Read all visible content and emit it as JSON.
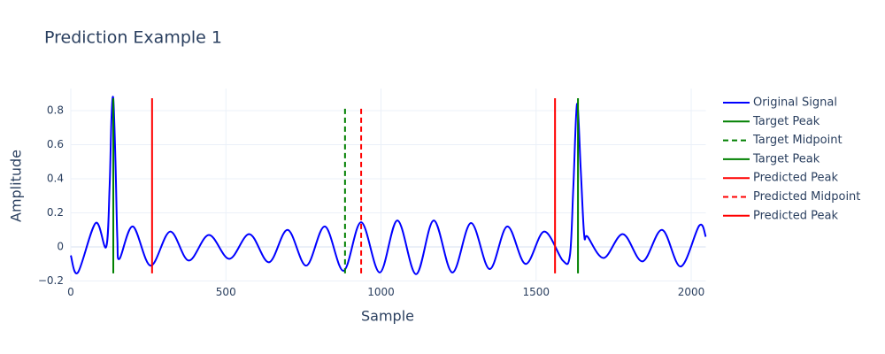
{
  "chart_data": {
    "type": "line",
    "title": "Prediction Example 1",
    "x_label": "Sample",
    "y_label": "Amplitude",
    "xlim": [
      0,
      2047
    ],
    "ylim": [
      -0.2,
      0.93
    ],
    "xticks": [
      0,
      500,
      1000,
      1500,
      2000
    ],
    "yticks": [
      {
        "value": -0.2,
        "label": "−0.2"
      },
      0,
      0.2,
      0.4,
      0.6,
      0.8
    ],
    "grid": true,
    "legend": "right",
    "series": [
      {
        "name": "Original Signal",
        "color": "#0000ff",
        "dash": "solid",
        "smooth": true,
        "x": [
          0,
          23,
          80,
          114,
          125,
          131,
          137,
          144,
          150,
          157,
          200,
          257,
          320,
          380,
          445,
          511,
          576,
          639,
          699,
          759,
          819,
          879,
          936,
          996,
          1053,
          1113,
          1170,
          1230,
          1290,
          1350,
          1407,
          1466,
          1526,
          1586,
          1609,
          1620,
          1632,
          1644,
          1655,
          1666,
          1718,
          1780,
          1843,
          1906,
          1966,
          2026,
          2047
        ],
        "values": [
          -0.05,
          -0.15,
          0.14,
          0.0,
          0.35,
          0.75,
          0.87,
          0.5,
          0.05,
          -0.07,
          0.12,
          -0.11,
          0.09,
          -0.08,
          0.07,
          -0.07,
          0.075,
          -0.09,
          0.1,
          -0.11,
          0.12,
          -0.14,
          0.145,
          -0.15,
          0.155,
          -0.16,
          0.155,
          -0.15,
          0.14,
          -0.13,
          0.12,
          -0.1,
          0.09,
          -0.08,
          -0.05,
          0.35,
          0.84,
          0.45,
          0.07,
          0.06,
          -0.065,
          0.075,
          -0.085,
          0.1,
          -0.115,
          0.125,
          0.06
        ]
      },
      {
        "name": "Target Peak",
        "color": "#008000",
        "dash": "solid",
        "x": [
          137,
          137
        ],
        "values": [
          -0.155,
          0.873
        ]
      },
      {
        "name": "Target Midpoint",
        "color": "#008000",
        "dash": "dash",
        "x": [
          884,
          884
        ],
        "values": [
          -0.155,
          0.83
        ]
      },
      {
        "name": "Target Peak",
        "color": "#008000",
        "dash": "solid",
        "x": [
          1635,
          1635
        ],
        "values": [
          -0.155,
          0.873
        ]
      },
      {
        "name": "Predicted Peak",
        "color": "#ff0000",
        "dash": "solid",
        "x": [
          262,
          262
        ],
        "values": [
          -0.155,
          0.873
        ]
      },
      {
        "name": "Predicted Midpoint",
        "color": "#ff0000",
        "dash": "dash",
        "x": [
          936,
          936
        ],
        "values": [
          -0.155,
          0.83
        ]
      },
      {
        "name": "Predicted Peak",
        "color": "#ff0000",
        "dash": "solid",
        "x": [
          1561,
          1561
        ],
        "values": [
          -0.155,
          0.873
        ]
      }
    ]
  }
}
